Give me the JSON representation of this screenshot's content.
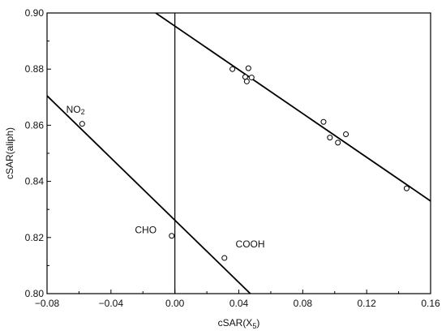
{
  "chart_data": {
    "type": "scatter",
    "title": "",
    "xlabel": "cSAR(X",
    "xlabel_sub": "5",
    "xlabel_close": ")",
    "ylabel": "cSAR(aliph)",
    "xlim": [
      -0.08,
      0.16
    ],
    "ylim": [
      0.8,
      0.9
    ],
    "xticks": [
      -0.08,
      -0.04,
      0.0,
      0.04,
      0.08,
      0.12,
      0.16
    ],
    "xtick_labels": [
      "−0.08",
      "−0.04",
      "0.00",
      "0.04",
      "0.08",
      "0.12",
      "0.16"
    ],
    "yticks": [
      0.8,
      0.82,
      0.84,
      0.86,
      0.88,
      0.9
    ],
    "ytick_labels": [
      "0.80",
      "0.82",
      "0.84",
      "0.86",
      "0.88",
      "0.90"
    ],
    "grid": false,
    "reference_line_x": 0.0,
    "series": [
      {
        "points": [
          {
            "x": 0.036,
            "y": 0.88
          },
          {
            "x": 0.044,
            "y": 0.8772
          },
          {
            "x": 0.045,
            "y": 0.8756
          },
          {
            "x": 0.046,
            "y": 0.8803
          },
          {
            "x": 0.048,
            "y": 0.877
          },
          {
            "x": 0.093,
            "y": 0.8612
          },
          {
            "x": 0.097,
            "y": 0.8556
          },
          {
            "x": 0.102,
            "y": 0.8538
          },
          {
            "x": 0.107,
            "y": 0.8568
          },
          {
            "x": 0.145,
            "y": 0.8375
          }
        ],
        "fit_line": {
          "x": [
            -0.012,
            0.16
          ],
          "y": [
            0.9,
            0.833
          ]
        }
      },
      {
        "points": [
          {
            "x": -0.058,
            "y": 0.8605
          },
          {
            "x": -0.002,
            "y": 0.8206
          },
          {
            "x": 0.031,
            "y": 0.8127
          }
        ],
        "fit_line": {
          "x": [
            -0.08,
            0.049
          ],
          "y": [
            0.8705,
            0.799
          ]
        }
      }
    ],
    "annotations": [
      {
        "text": "NO",
        "sub": "2",
        "x": -0.068,
        "y": 0.8645
      },
      {
        "text": "CHO",
        "sub": "",
        "x": -0.025,
        "y": 0.8215
      },
      {
        "text": "COOH",
        "sub": "",
        "x": 0.038,
        "y": 0.8165
      }
    ]
  }
}
